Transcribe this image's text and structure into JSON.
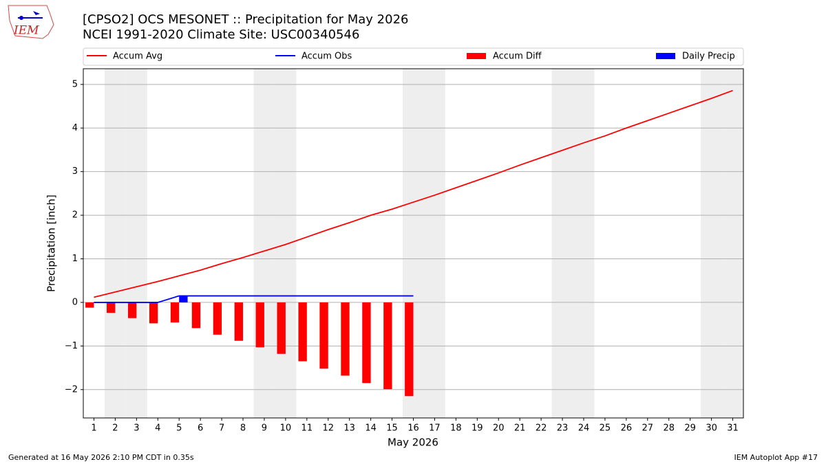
{
  "chart_data": {
    "type": "line",
    "title": "[CPSO2] OCS MESONET :: Precipitation for May 2026",
    "subtitle": "NCEI 1991-2020 Climate Site: USC00340546",
    "logo_text": "IEM",
    "x_label": "May 2026",
    "y_label": "Precipitation [inch]",
    "footer_left": "Generated at 16 May 2026 2:10 PM CDT in 0.35s",
    "footer_right": "IEM Autoplot App #17",
    "x": [
      1,
      2,
      3,
      4,
      5,
      6,
      7,
      8,
      9,
      10,
      11,
      12,
      13,
      14,
      15,
      16,
      17,
      18,
      19,
      20,
      21,
      22,
      23,
      24,
      25,
      26,
      27,
      28,
      29,
      30,
      31
    ],
    "xlim": [
      0.5,
      31.5
    ],
    "xticks": [
      1,
      2,
      3,
      4,
      5,
      6,
      7,
      8,
      9,
      10,
      11,
      12,
      13,
      14,
      15,
      16,
      17,
      18,
      19,
      20,
      21,
      22,
      23,
      24,
      25,
      26,
      27,
      28,
      29,
      30,
      31
    ],
    "ylim": [
      -2.65,
      5.36
    ],
    "yticks": [
      {
        "value": -2,
        "label": "−2"
      },
      {
        "value": -1,
        "label": "−1"
      },
      0,
      1,
      2,
      3,
      4,
      5
    ],
    "grid": true,
    "shaded_days": [
      2,
      3,
      9,
      10,
      16,
      17,
      23,
      24,
      30,
      31
    ],
    "shade_color": "#eeeeee",
    "series": [
      {
        "name": "Accum Avg",
        "type": "line",
        "color": "#ff0000",
        "values": [
          0.12,
          0.24,
          0.36,
          0.48,
          0.61,
          0.74,
          0.89,
          1.03,
          1.18,
          1.33,
          1.5,
          1.67,
          1.83,
          2.0,
          2.14,
          2.3,
          2.46,
          2.63,
          2.8,
          2.97,
          3.15,
          3.32,
          3.49,
          3.66,
          3.82,
          4.0,
          4.17,
          4.34,
          4.51,
          4.68,
          4.86
        ]
      },
      {
        "name": "Accum Obs",
        "type": "line",
        "color": "#0000ff",
        "values": [
          0,
          0,
          0,
          0,
          0.15,
          0.15,
          0.15,
          0.15,
          0.15,
          0.15,
          0.15,
          0.15,
          0.15,
          0.15,
          0.15,
          0.15,
          null,
          null,
          null,
          null,
          null,
          null,
          null,
          null,
          null,
          null,
          null,
          null,
          null,
          null,
          null
        ]
      },
      {
        "name": "Accum Diff",
        "type": "bar",
        "side": "left",
        "color": "#ff0000",
        "values": [
          -0.12,
          -0.24,
          -0.36,
          -0.48,
          -0.46,
          -0.59,
          -0.74,
          -0.88,
          -1.03,
          -1.18,
          -1.35,
          -1.52,
          -1.68,
          -1.85,
          -1.99,
          -2.15,
          null,
          null,
          null,
          null,
          null,
          null,
          null,
          null,
          null,
          null,
          null,
          null,
          null,
          null,
          null
        ]
      },
      {
        "name": "Daily Precip",
        "type": "bar",
        "side": "right",
        "color": "#0000ff",
        "values": [
          0,
          0,
          0,
          0,
          0.15,
          0,
          0,
          0,
          0,
          0,
          0,
          0,
          0,
          0,
          0,
          0,
          null,
          null,
          null,
          null,
          null,
          null,
          null,
          null,
          null,
          null,
          null,
          null,
          null,
          null,
          null
        ]
      }
    ]
  }
}
